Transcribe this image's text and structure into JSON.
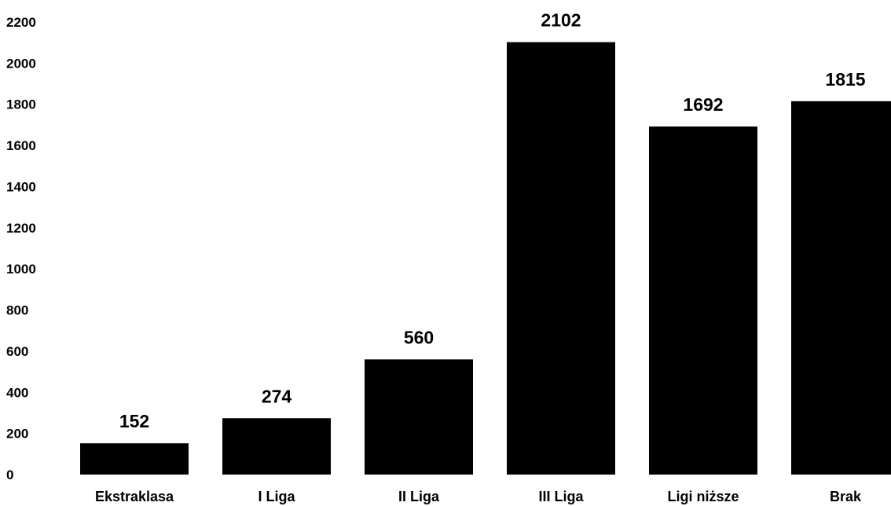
{
  "chart_data": {
    "type": "bar",
    "categories": [
      "Ekstraklasa",
      "I Liga",
      "II Liga",
      "III Liga",
      "Ligi niższe",
      "Brak"
    ],
    "values": [
      152,
      274,
      560,
      2102,
      1692,
      1815
    ],
    "data_labels": [
      "152",
      "274",
      "560",
      "2102",
      "1692",
      "1815"
    ],
    "y_ticks": [
      0,
      200,
      400,
      600,
      800,
      1000,
      1200,
      1400,
      1600,
      1800,
      2000,
      2200
    ],
    "ylim": [
      0,
      2200
    ],
    "title": "",
    "xlabel": "",
    "ylabel": "",
    "grid": false,
    "legend": "none",
    "bar_color": "#000000"
  }
}
